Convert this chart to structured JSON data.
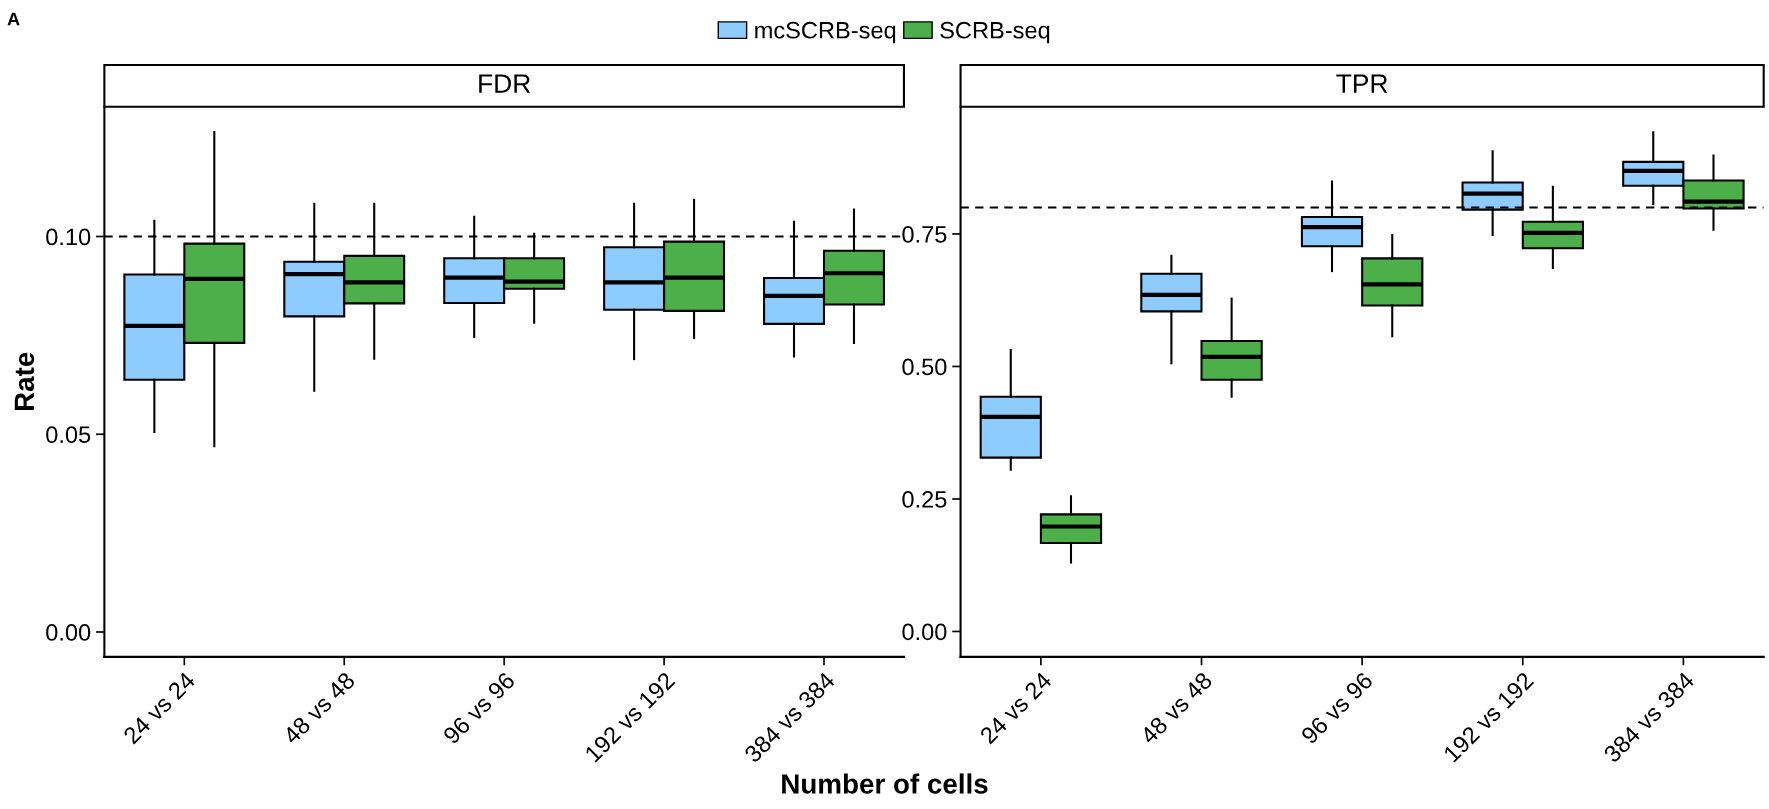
{
  "chart_data": [
    {
      "type": "box",
      "title": "FDR",
      "ylabel": "Rate",
      "xlabel": "Number of cells",
      "annotations": [
        "A"
      ],
      "legend": "top",
      "grid": false,
      "categories": [
        "24 vs 24",
        "48 vs 48",
        "96 vs 96",
        "192 vs 192",
        "384 vs 384"
      ],
      "ylim": [
        -0.0063,
        0.1328
      ],
      "yticks": [
        {
          "value": 0,
          "label": "0.00"
        },
        0.05,
        {
          "value": 0.1,
          "label": "0.10"
        }
      ],
      "ref_lines": [
        {
          "axis": "y",
          "value": 0.1,
          "line_style": "dashed",
          "color": "#000000"
        }
      ],
      "series": [
        {
          "name": "mcSCRB-seq",
          "color": "#8ecbff",
          "boxes": [
            {
              "low": 0.0506,
              "q1": 0.0638,
              "median": 0.0774,
              "q3": 0.0904,
              "high": 0.104
            },
            {
              "low": 0.061,
              "q1": 0.0798,
              "median": 0.0905,
              "q3": 0.0936,
              "high": 0.1083
            },
            {
              "low": 0.0746,
              "q1": 0.0832,
              "median": 0.0896,
              "q3": 0.0945,
              "high": 0.105
            },
            {
              "low": 0.069,
              "q1": 0.0815,
              "median": 0.0884,
              "q3": 0.0973,
              "high": 0.1083
            },
            {
              "low": 0.0697,
              "q1": 0.0779,
              "median": 0.085,
              "q3": 0.0895,
              "high": 0.1037
            }
          ]
        },
        {
          "name": "SCRB-seq",
          "color": "#4daf4a",
          "boxes": [
            {
              "low": 0.047,
              "q1": 0.0731,
              "median": 0.0893,
              "q3": 0.0982,
              "high": 0.1264
            },
            {
              "low": 0.0691,
              "q1": 0.0831,
              "median": 0.0884,
              "q3": 0.0951,
              "high": 0.1083
            },
            {
              "low": 0.0782,
              "q1": 0.0868,
              "median": 0.0886,
              "q3": 0.0945,
              "high": 0.1007
            },
            {
              "low": 0.0743,
              "q1": 0.0812,
              "median": 0.0896,
              "q3": 0.0987,
              "high": 0.1093
            },
            {
              "low": 0.0731,
              "q1": 0.0828,
              "median": 0.0907,
              "q3": 0.0964,
              "high": 0.1068
            }
          ]
        }
      ]
    },
    {
      "type": "box",
      "title": "TPR",
      "grid": false,
      "categories": [
        "24 vs 24",
        "48 vs 48",
        "96 vs 96",
        "192 vs 192",
        "384 vs 384"
      ],
      "ylim": [
        -0.048,
        0.99
      ],
      "yticks": [
        {
          "value": 0,
          "label": "0.00"
        },
        0.25,
        {
          "value": 0.5,
          "label": "0.50"
        },
        0.75
      ],
      "ref_lines": [
        {
          "axis": "y",
          "value": 0.8,
          "line_style": "dashed",
          "color": "#000000"
        }
      ],
      "series": [
        {
          "color": "#8ecbff",
          "boxes": [
            {
              "low": 0.305,
              "q1": 0.328,
              "median": 0.405,
              "q3": 0.443,
              "high": 0.531
            },
            {
              "low": 0.506,
              "q1": 0.604,
              "median": 0.635,
              "q3": 0.675,
              "high": 0.709
            },
            {
              "low": 0.68,
              "q1": 0.727,
              "median": 0.763,
              "q3": 0.782,
              "high": 0.849
            },
            {
              "low": 0.748,
              "q1": 0.796,
              "median": 0.826,
              "q3": 0.847,
              "high": 0.906
            },
            {
              "low": 0.806,
              "q1": 0.841,
              "median": 0.869,
              "q3": 0.886,
              "high": 0.942
            }
          ]
        },
        {
          "color": "#4daf4a",
          "boxes": [
            {
              "low": 0.13,
              "q1": 0.167,
              "median": 0.198,
              "q3": 0.221,
              "high": 0.255
            },
            {
              "low": 0.443,
              "q1": 0.475,
              "median": 0.518,
              "q3": 0.548,
              "high": 0.628
            },
            {
              "low": 0.557,
              "q1": 0.615,
              "median": 0.655,
              "q3": 0.704,
              "high": 0.748
            },
            {
              "low": 0.686,
              "q1": 0.723,
              "median": 0.752,
              "q3": 0.773,
              "high": 0.839
            },
            {
              "low": 0.758,
              "q1": 0.798,
              "median": 0.811,
              "q3": 0.851,
              "high": 0.898
            }
          ]
        }
      ]
    }
  ]
}
